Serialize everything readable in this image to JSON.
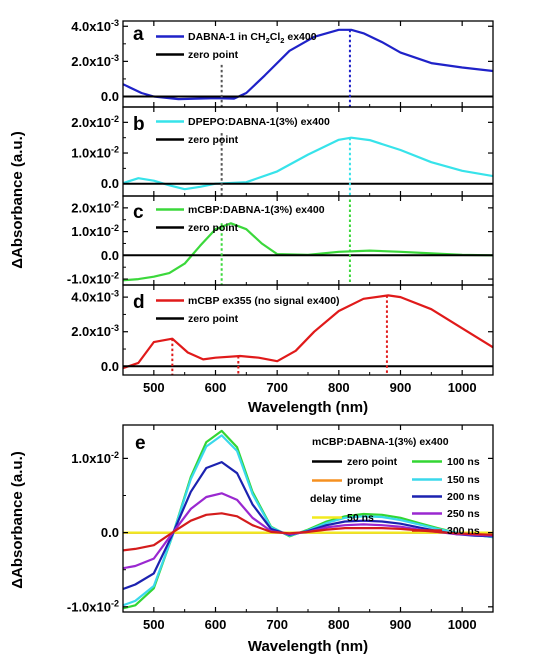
{
  "figure": {
    "y_axis_title": "ΔAbsorbance (a.u.)",
    "x_axis_title": "Wavelength (nm)"
  },
  "chart_data": [
    {
      "panel": "a",
      "type": "line",
      "xlim": [
        450,
        1050
      ],
      "ylim": [
        -0.0006,
        0.0043
      ],
      "x_ticks": [
        500,
        600,
        700,
        800,
        900,
        1000
      ],
      "y_ticks": [
        {
          "value": 0,
          "label": "0.0"
        },
        {
          "value": 0.002,
          "label": "2.0x10-3",
          "base": "2.0x10",
          "exp": "-3"
        },
        {
          "value": 0.004,
          "label": "4.0x10-3",
          "base": "4.0x10",
          "exp": "-3"
        }
      ],
      "series": [
        {
          "name": "DABNA-1 in CH2Cl2 ex400",
          "name_prefix": "DABNA-1 in CH",
          "name_sub1": "2",
          "name_mid": "Cl",
          "name_sub2": "2",
          "name_suffix": " ex400",
          "color": "#1f22c8",
          "x": [
            450,
            480,
            500,
            540,
            600,
            630,
            650,
            680,
            720,
            760,
            800,
            820,
            840,
            870,
            900,
            950,
            1000,
            1050
          ],
          "y": [
            0.0007,
            0.0002,
            0.0,
            -0.00015,
            -0.0001,
            -0.00012,
            0.0002,
            0.0012,
            0.0026,
            0.0034,
            0.0038,
            0.0038,
            0.0036,
            0.0031,
            0.0025,
            0.0019,
            0.00165,
            0.00145
          ]
        },
        {
          "name": "zero point",
          "color": "#000000",
          "x": [
            450,
            1050
          ],
          "y": [
            0,
            0
          ]
        }
      ],
      "markers": [
        {
          "x": 610,
          "color": "#555555",
          "y_top": 0.0018
        },
        {
          "x": 818,
          "color": "#1f22c8",
          "y_top": 0.0038
        }
      ]
    },
    {
      "panel": "b",
      "type": "line",
      "xlim": [
        450,
        1050
      ],
      "ylim": [
        -0.004,
        0.025
      ],
      "x_ticks": [
        500,
        600,
        700,
        800,
        900,
        1000
      ],
      "y_ticks": [
        {
          "value": 0,
          "label": "0.0"
        },
        {
          "value": 0.01,
          "label": "1.0x10-2",
          "base": "1.0x10",
          "exp": "-2"
        },
        {
          "value": 0.02,
          "label": "2.0x10-2",
          "base": "2.0x10",
          "exp": "-2"
        }
      ],
      "series": [
        {
          "name": "DPEPO:DABNA-1(3%) ex400",
          "color": "#37e3ea",
          "x": [
            450,
            475,
            500,
            525,
            550,
            575,
            600,
            650,
            700,
            750,
            800,
            820,
            850,
            900,
            950,
            1000,
            1050
          ],
          "y": [
            0.0002,
            0.0018,
            0.001,
            -0.0005,
            -0.0018,
            -0.001,
            0.0,
            0.0005,
            0.004,
            0.0095,
            0.0143,
            0.015,
            0.0142,
            0.011,
            0.007,
            0.0042,
            0.0025
          ]
        },
        {
          "name": "zero point",
          "color": "#000000",
          "x": [
            450,
            1050
          ],
          "y": [
            0,
            0
          ]
        }
      ],
      "markers": [
        {
          "x": 610,
          "color": "#555555",
          "y_top": 0.0165
        },
        {
          "x": 818,
          "color": "#37e3ea",
          "y_top": 0.015
        }
      ]
    },
    {
      "panel": "c",
      "type": "line",
      "xlim": [
        450,
        1050
      ],
      "ylim": [
        -0.0125,
        0.025
      ],
      "x_ticks": [
        500,
        600,
        700,
        800,
        900,
        1000
      ],
      "y_ticks": [
        {
          "value": -0.01,
          "label": "-1.0x10-2",
          "base": "-1.0x10",
          "exp": "-2"
        },
        {
          "value": 0,
          "label": "0.0"
        },
        {
          "value": 0.01,
          "label": "1.0x10-2",
          "base": "1.0x10",
          "exp": "-2"
        },
        {
          "value": 0.02,
          "label": "2.0x10-2",
          "base": "2.0x10",
          "exp": "-2"
        }
      ],
      "series": [
        {
          "name": "mCBP:DABNA-1(3%) ex400",
          "color": "#3bd83b",
          "x": [
            450,
            475,
            500,
            525,
            550,
            575,
            600,
            625,
            650,
            675,
            700,
            750,
            800,
            850,
            900,
            950,
            1000,
            1050
          ],
          "y": [
            -0.0105,
            -0.01,
            -0.009,
            -0.0075,
            -0.0035,
            0.004,
            0.011,
            0.0135,
            0.011,
            0.005,
            0.0005,
            0.0002,
            0.0015,
            0.002,
            0.0015,
            0.0008,
            0.0002,
            0.0
          ]
        },
        {
          "name": "zero point",
          "color": "#000000",
          "x": [
            450,
            1050
          ],
          "y": [
            0,
            0
          ]
        }
      ],
      "markers": [
        {
          "x": 610,
          "color": "#3bd83b",
          "y_top": 0.0135
        },
        {
          "x": 818,
          "color": "#3bd83b",
          "y_top": 0.0235
        }
      ]
    },
    {
      "panel": "d",
      "type": "line",
      "xlim": [
        450,
        1050
      ],
      "ylim": [
        -0.0005,
        0.0047
      ],
      "x_ticks": [
        500,
        600,
        700,
        800,
        900,
        1000
      ],
      "x_tick_labels": [
        "500",
        "600",
        "700",
        "800",
        "900",
        "1000"
      ],
      "y_ticks": [
        {
          "value": 0,
          "label": "0.0"
        },
        {
          "value": 0.002,
          "label": "2.0x10-3",
          "base": "2.0x10",
          "exp": "-3"
        },
        {
          "value": 0.004,
          "label": "4.0x10-3",
          "base": "4.0x10",
          "exp": "-3"
        }
      ],
      "series": [
        {
          "name": "mCBP ex355 (no signal ex400)",
          "color": "#e01a1a",
          "x": [
            450,
            475,
            500,
            530,
            555,
            580,
            600,
            640,
            670,
            700,
            730,
            760,
            800,
            840,
            880,
            900,
            950,
            1000,
            1050
          ],
          "y": [
            -0.0001,
            0.0002,
            0.0014,
            0.0016,
            0.0008,
            0.0004,
            0.0005,
            0.0006,
            0.0005,
            0.0003,
            0.0009,
            0.002,
            0.0032,
            0.0039,
            0.0041,
            0.004,
            0.0033,
            0.0022,
            0.0011
          ]
        },
        {
          "name": "zero point",
          "color": "#000000",
          "x": [
            450,
            1050
          ],
          "y": [
            0,
            0
          ]
        }
      ],
      "markers": [
        {
          "x": 530,
          "color": "#e01a1a",
          "y_top": 0.0016
        },
        {
          "x": 637,
          "color": "#e01a1a",
          "y_top": 0.0006
        },
        {
          "x": 878,
          "color": "#e01a1a",
          "y_top": 0.0041
        }
      ]
    },
    {
      "panel": "e",
      "type": "line",
      "title": "mCBP:DABNA-1(3%) ex400",
      "xlim": [
        450,
        1050
      ],
      "ylim": [
        -0.0107,
        0.0145
      ],
      "x_ticks": [
        500,
        600,
        700,
        800,
        900,
        1000
      ],
      "x_tick_labels": [
        "500",
        "600",
        "700",
        "800",
        "900",
        "1000"
      ],
      "y_ticks": [
        {
          "value": -0.01,
          "label": "-1.0x10-2",
          "base": "-1.0x10",
          "exp": "-2"
        },
        {
          "value": 0,
          "label": "0.0"
        },
        {
          "value": 0.01,
          "label": "1.0x10-2",
          "base": "1.0x10",
          "exp": "-2"
        }
      ],
      "legend_subtitle": "delay time",
      "x": [
        450,
        470,
        500,
        530,
        560,
        585,
        610,
        635,
        660,
        690,
        720,
        750,
        780,
        810,
        840,
        870,
        900,
        930,
        960,
        990,
        1020,
        1050
      ],
      "series": [
        {
          "name": "zero point",
          "color": "#000000",
          "y": [
            0,
            0,
            0,
            0,
            0,
            0,
            0,
            0,
            0,
            0,
            0,
            0,
            0,
            0,
            0,
            0,
            0,
            0,
            0,
            0,
            0,
            0
          ]
        },
        {
          "name": "prompt",
          "color": "#f59020",
          "y": [
            0,
            0,
            0,
            0,
            0,
            0,
            0,
            0,
            0,
            0,
            0,
            0,
            0,
            0,
            0,
            0,
            0,
            0,
            0,
            0,
            0,
            0
          ]
        },
        {
          "name": "50 ns",
          "color": "#f2ea1e",
          "y": [
            0,
            0,
            0,
            0,
            0,
            0,
            0,
            0,
            0,
            0,
            0,
            0,
            0,
            0,
            0,
            0,
            0,
            0,
            0,
            0,
            0,
            0
          ]
        },
        {
          "name": "100 ns",
          "color": "#33d633",
          "y": [
            -0.0102,
            -0.0098,
            -0.0075,
            -0.0005,
            0.0075,
            0.0122,
            0.0137,
            0.0115,
            0.0055,
            0.0008,
            -0.0005,
            0.0004,
            0.0015,
            0.0022,
            0.0025,
            0.0024,
            0.002,
            0.0013,
            0.0006,
            0.0,
            -0.0003,
            -0.0006
          ]
        },
        {
          "name": "150 ns",
          "color": "#3ad8ec",
          "y": [
            -0.0098,
            -0.0092,
            -0.0072,
            -0.0005,
            0.0072,
            0.0116,
            0.0131,
            0.011,
            0.0052,
            0.0007,
            -0.0004,
            0.0003,
            0.0013,
            0.002,
            0.0022,
            0.0021,
            0.0017,
            0.0011,
            0.0005,
            0.0,
            -0.0003,
            -0.0006
          ]
        },
        {
          "name": "200 ns",
          "color": "#1c22b0",
          "y": [
            -0.0076,
            -0.007,
            -0.0055,
            -0.0003,
            0.0055,
            0.0087,
            0.0095,
            0.008,
            0.0038,
            0.0005,
            -0.0003,
            0.0002,
            0.001,
            0.0015,
            0.0016,
            0.0015,
            0.0012,
            0.0007,
            0.0002,
            -0.0002,
            -0.0004,
            -0.0005
          ]
        },
        {
          "name": "250 ns",
          "color": "#9a28d0",
          "y": [
            -0.0048,
            -0.0045,
            -0.0035,
            -0.0001,
            0.0032,
            0.0048,
            0.0053,
            0.0044,
            0.002,
            0.0002,
            -0.0002,
            0.0001,
            0.0007,
            0.001,
            0.0011,
            0.001,
            0.0008,
            0.0004,
            0.0001,
            -0.0002,
            -0.0003,
            -0.0004
          ]
        },
        {
          "name": "300 ns",
          "color": "#d41c1c",
          "y": [
            -0.0024,
            -0.0022,
            -0.0017,
            0.0,
            0.0016,
            0.0024,
            0.0026,
            0.0022,
            0.001,
            0.0001,
            -0.0001,
            0.0001,
            0.0004,
            0.0006,
            0.0006,
            0.0006,
            0.0005,
            0.0003,
            0.0001,
            -0.0001,
            -0.0002,
            -0.0003
          ]
        }
      ]
    }
  ]
}
